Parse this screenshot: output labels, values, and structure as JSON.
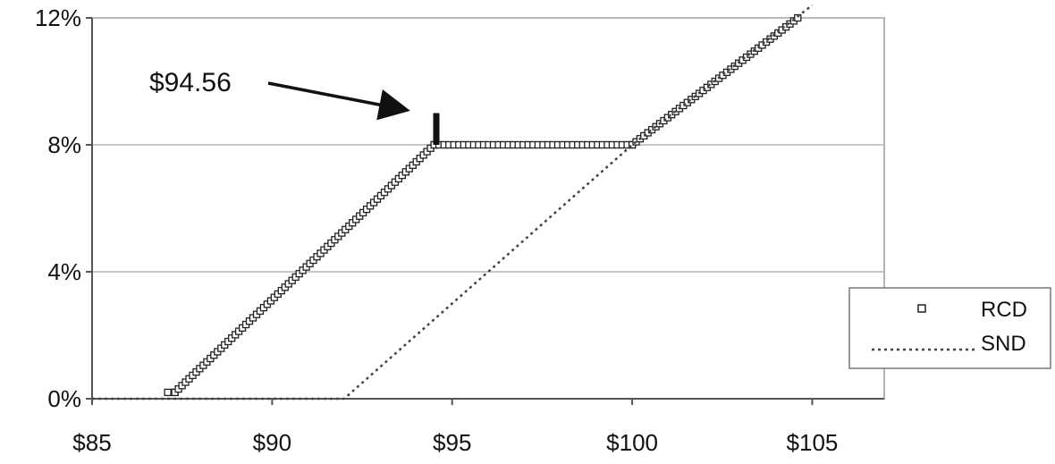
{
  "chart_data": {
    "type": "line",
    "title": "",
    "xlabel": "",
    "ylabel": "",
    "xlim": [
      85,
      107
    ],
    "ylim": [
      0,
      12
    ],
    "x_ticks": [
      85,
      90,
      95,
      100,
      105
    ],
    "x_tick_labels": [
      "$85",
      "$90",
      "$95",
      "$100",
      "$105"
    ],
    "y_ticks": [
      0,
      4,
      8,
      12
    ],
    "y_tick_labels": [
      "0%",
      "4%",
      "8%",
      "12%"
    ],
    "grid": "horizontal",
    "legend_position": "right",
    "series": [
      {
        "name": "RCD",
        "style": "square-markers",
        "color": "#222222",
        "points": [
          {
            "x": 87.1,
            "y": 0.2
          },
          {
            "x": 87.3,
            "y": 0.2
          },
          {
            "x": 94.5,
            "y": 8.0
          },
          {
            "x": 100.0,
            "y": 8.0
          },
          {
            "x": 104.6,
            "y": 12.0
          }
        ]
      },
      {
        "name": "SND",
        "style": "dotted-line",
        "color": "#444444",
        "points": [
          {
            "x": 85.0,
            "y": 0.0
          },
          {
            "x": 92.0,
            "y": 0.0
          },
          {
            "x": 100.0,
            "y": 8.0
          },
          {
            "x": 105.0,
            "y": 12.4
          }
        ]
      }
    ],
    "annotations": [
      {
        "text": "$94.56",
        "x": 94.56,
        "arrow": true,
        "marker_top": 9.0,
        "marker_bottom": 8.0
      }
    ]
  }
}
